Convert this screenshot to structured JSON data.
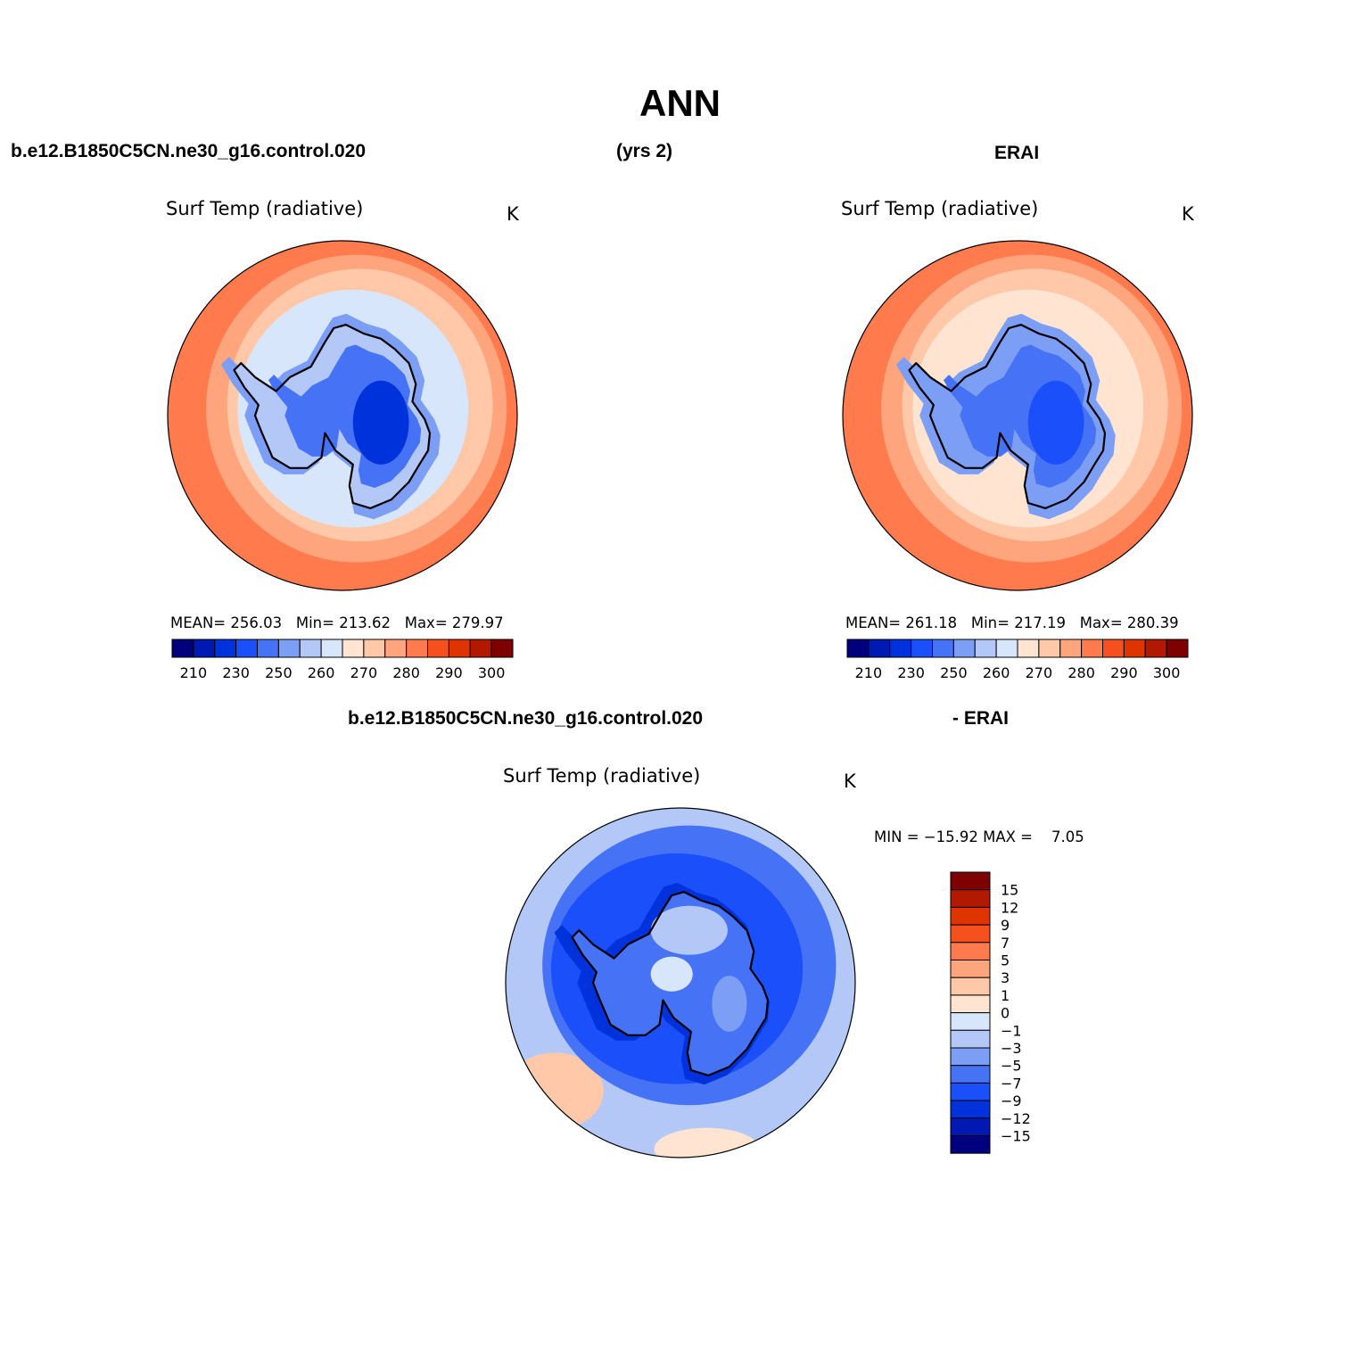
{
  "page_title": "ANN",
  "header": {
    "case_name": "b.e12.B1850C5CN.ne30_g16.control.020",
    "years": "(yrs 2)",
    "obs_name": "ERAI",
    "diff_case": "b.e12.B1850C5CN.ne30_g16.control.020",
    "diff_obs": "- ERAI"
  },
  "colors": {
    "abs_scale": [
      "#00007f",
      "#0019b3",
      "#0032db",
      "#1a4ffa",
      "#4673f5",
      "#7d9ef5",
      "#b3c8f7",
      "#d8e6fb",
      "#ffe5d1",
      "#ffc8a8",
      "#ffa57d",
      "#ff7a4c",
      "#f5501e",
      "#df3300",
      "#b31900",
      "#7f0000"
    ],
    "diff_scale": [
      "#00007f",
      "#0019b3",
      "#0032db",
      "#1a4ffa",
      "#4673f5",
      "#7d9ef5",
      "#b3c8f7",
      "#d8e6fb",
      "#ffe5d1",
      "#ffc8a8",
      "#ffa57d",
      "#ff7a4c",
      "#f5501e",
      "#df3300",
      "#b31900",
      "#7f0000"
    ]
  },
  "panels": [
    {
      "id": "model",
      "title": "Surf Temp (radiative)",
      "units": "K",
      "stats": {
        "mean_label": "MEAN=",
        "mean": "256.03",
        "min_label": "Min=",
        "min": "213.62",
        "max_label": "Max=",
        "max": "279.97"
      },
      "colorbar_ticks": [
        "210",
        "230",
        "250",
        "260",
        "270",
        "280",
        "290",
        "300"
      ],
      "field_levels": {
        "ring_outer": 277,
        "ring_mid": 272,
        "ring_inner": 266,
        "ocean_near": 258,
        "coast": 250,
        "interior": 230,
        "core": 215
      }
    },
    {
      "id": "obs",
      "title": "Surf Temp (radiative)",
      "units": "K",
      "stats": {
        "mean_label": "MEAN=",
        "mean": "261.18",
        "min_label": "Min=",
        "min": "217.19",
        "max_label": "Max=",
        "max": "280.39"
      },
      "colorbar_ticks": [
        "210",
        "230",
        "250",
        "260",
        "270",
        "280",
        "290",
        "300"
      ],
      "field_levels": {
        "ring_outer": 277,
        "ring_mid": 274,
        "ring_inner": 269,
        "ocean_near": 262,
        "coast": 248,
        "interior": 233,
        "core": 222
      }
    }
  ],
  "diff_panel": {
    "title": "Surf Temp (radiative)",
    "units": "K",
    "minmax": {
      "min_label": "MIN =",
      "min": "−15.92",
      "max_label": "MAX =",
      "max": "7.05"
    },
    "colorbar_ticks": [
      "15",
      "12",
      "9",
      "7",
      "5",
      "3",
      "1",
      "0",
      "−1",
      "−3",
      "−5",
      "−7",
      "−9",
      "−12",
      "−15"
    ]
  }
}
